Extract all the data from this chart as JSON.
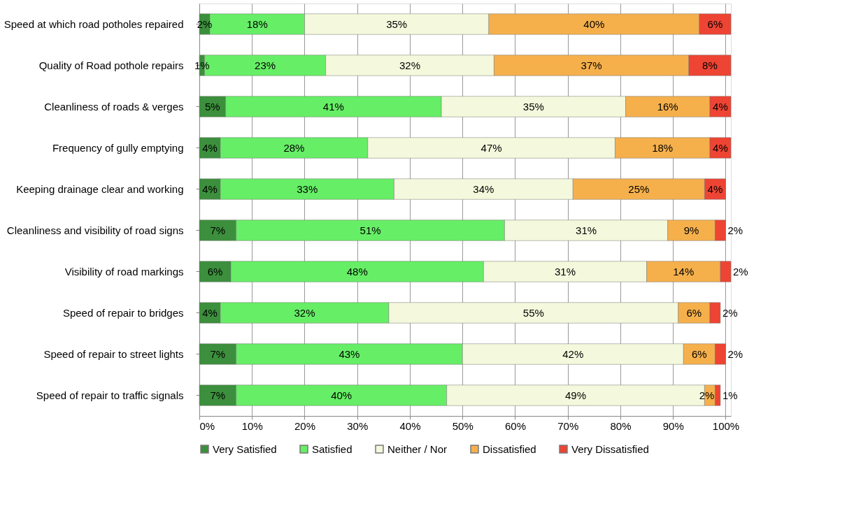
{
  "chart_data": {
    "type": "bar",
    "orientation": "horizontal",
    "stacked": true,
    "categories": [
      "Speed at which road potholes repaired",
      "Quality of Road pothole repairs",
      "Cleanliness of roads & verges",
      "Frequency of gully emptying",
      "Keeping drainage clear and working",
      "Cleanliness and visibility of road signs",
      "Visibility of road markings",
      "Speed of repair to bridges",
      "Speed of repair to street lights",
      "Speed of repair to traffic signals"
    ],
    "series": [
      {
        "name": "Very Satisfied",
        "color": "#3c8f3c",
        "values": [
          2,
          1,
          5,
          4,
          4,
          7,
          6,
          4,
          7,
          7
        ],
        "value_labels": [
          "2%",
          "1%",
          "5%",
          "4%",
          "4%",
          "7%",
          "6%",
          "4%",
          "7%",
          "7%"
        ]
      },
      {
        "name": "Satisfied",
        "color": "#66ee66",
        "values": [
          18,
          23,
          41,
          28,
          33,
          51,
          48,
          32,
          43,
          40
        ],
        "value_labels": [
          "18%",
          "23%",
          "41%",
          "28%",
          "33%",
          "51%",
          "48%",
          "32%",
          "43%",
          "40%"
        ]
      },
      {
        "name": "Neither / Nor",
        "color": "#f4f8dc",
        "values": [
          35,
          32,
          35,
          47,
          34,
          31,
          31,
          55,
          42,
          49
        ],
        "value_labels": [
          "35%",
          "32%",
          "35%",
          "47%",
          "34%",
          "31%",
          "31%",
          "55%",
          "42%",
          "49%"
        ]
      },
      {
        "name": "Dissatisfied",
        "color": "#f5b04c",
        "values": [
          40,
          37,
          16,
          18,
          25,
          9,
          14,
          6,
          6,
          2
        ],
        "value_labels": [
          "40%",
          "37%",
          "16%",
          "18%",
          "25%",
          "9%",
          "14%",
          "6%",
          "6%",
          "2%"
        ]
      },
      {
        "name": "Very Dissatisfied",
        "color": "#ee4433",
        "values": [
          6,
          8,
          4,
          4,
          4,
          2,
          2,
          2,
          2,
          1
        ],
        "value_labels": [
          "6%",
          "8%",
          "4%",
          "4%",
          "4%",
          "2%",
          "2%",
          "2%",
          "2%",
          "1%"
        ]
      }
    ],
    "xlim": [
      0,
      101
    ],
    "xticks": [
      {
        "value": 0,
        "label": "0%"
      },
      {
        "value": 10,
        "label": "10%"
      },
      {
        "value": 20,
        "label": "20%"
      },
      {
        "value": 30,
        "label": "30%"
      },
      {
        "value": 40,
        "label": "40%"
      },
      {
        "value": 50,
        "label": "50%"
      },
      {
        "value": 60,
        "label": "60%"
      },
      {
        "value": 70,
        "label": "70%"
      },
      {
        "value": 80,
        "label": "80%"
      },
      {
        "value": 90,
        "label": "90%"
      },
      {
        "value": 100,
        "label": "100%"
      }
    ],
    "grid": "x",
    "legend": "bottom"
  }
}
